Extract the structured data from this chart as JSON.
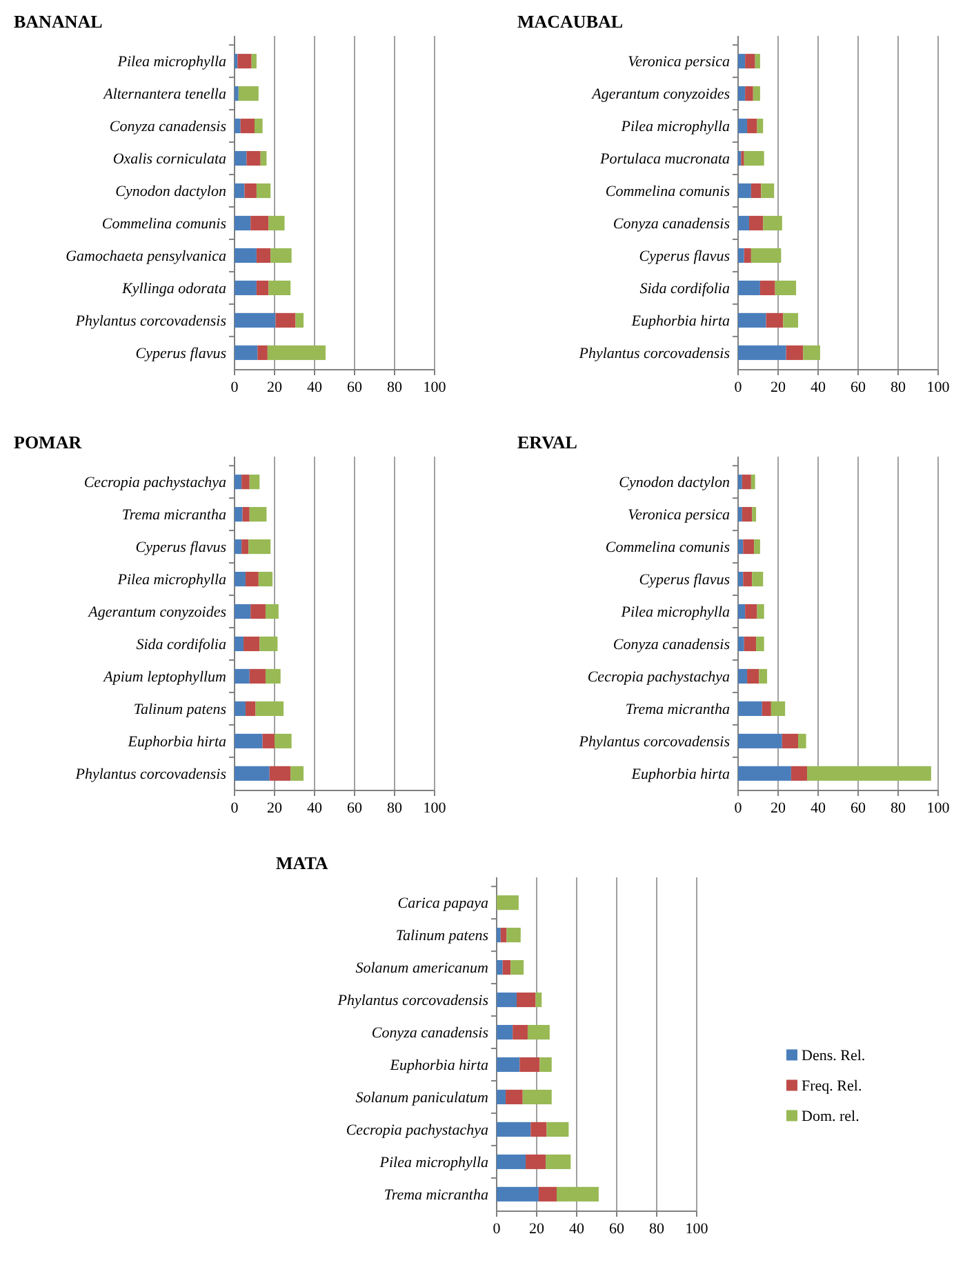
{
  "chart_data": [
    {
      "type": "bar",
      "orientation": "horizontal",
      "stacked": true,
      "title": "BANANAL",
      "categories": [
        "Pilea microphylla",
        "Alternantera tenella",
        "Conyza canadensis",
        "Oxalis corniculata",
        "Cynodon dactylon",
        "Commelina comunis",
        "Gamochaeta pensylvanica",
        "Kyllinga odorata",
        "Phylantus corcovadensis",
        "Cyperus flavus"
      ],
      "series": [
        {
          "color": "#4a7ebb",
          "values": [
            1.5,
            2,
            3,
            6,
            5,
            8,
            11,
            11,
            20.5,
            11.5
          ]
        },
        {
          "color": "#be4b48",
          "values": [
            7,
            0,
            7,
            7,
            6,
            9,
            7,
            6,
            10,
            5
          ]
        },
        {
          "color": "#98b954",
          "values": [
            2.5,
            10,
            4,
            3,
            7,
            8,
            10.5,
            11,
            4,
            29
          ]
        }
      ],
      "xlim": [
        0,
        100
      ],
      "xticks": [
        0,
        20,
        40,
        60,
        80,
        100
      ],
      "grid": "x",
      "legend": false
    },
    {
      "type": "bar",
      "orientation": "horizontal",
      "stacked": true,
      "title": "MACAUBAL",
      "categories": [
        "Veronica persica",
        "Agerantum conyzoides",
        "Pilea microphylla",
        "Portulaca mucronata",
        "Commelina comunis",
        "Conyza canadensis",
        "Cyperus flavus",
        "Sida cordifolia",
        "Euphorbia hirta",
        "Phylantus corcovadensis"
      ],
      "series": [
        {
          "color": "#4a7ebb",
          "values": [
            3.5,
            3.5,
            4.5,
            1.5,
            6.5,
            5.5,
            3,
            11,
            14,
            24
          ]
        },
        {
          "color": "#be4b48",
          "values": [
            5,
            4,
            5,
            1.5,
            5,
            7,
            3.5,
            7.5,
            8.5,
            8.5
          ]
        },
        {
          "color": "#98b954",
          "values": [
            2.5,
            3.5,
            3,
            10,
            6.5,
            9.5,
            15,
            10.5,
            7.5,
            8.5
          ]
        }
      ],
      "xlim": [
        0,
        100
      ],
      "xticks": [
        0,
        20,
        40,
        60,
        80,
        100
      ],
      "grid": "x",
      "legend": false
    },
    {
      "type": "bar",
      "orientation": "horizontal",
      "stacked": true,
      "title": "POMAR",
      "categories": [
        "Cecropia pachystachya",
        "Trema micrantha",
        "Cyperus flavus",
        "Pilea microphylla",
        "Agerantum conyzoides",
        "Sida cordifolia",
        "Apium leptophyllum",
        "Talinum patens",
        "Euphorbia hirta",
        "Phylantus corcovadensis"
      ],
      "series": [
        {
          "color": "#4a7ebb",
          "values": [
            3.5,
            4,
            3.5,
            5.5,
            8,
            4.5,
            7.5,
            5.5,
            14,
            17.5
          ]
        },
        {
          "color": "#be4b48",
          "values": [
            4,
            3.5,
            3.5,
            6.5,
            7.5,
            8,
            8,
            5,
            6,
            10.5
          ]
        },
        {
          "color": "#98b954",
          "values": [
            5,
            8.5,
            11,
            7,
            6.5,
            9,
            7.5,
            14,
            8.5,
            6.5
          ]
        }
      ],
      "xlim": [
        0,
        100
      ],
      "xticks": [
        0,
        20,
        40,
        60,
        80,
        100
      ],
      "grid": "x",
      "legend": false
    },
    {
      "type": "bar",
      "orientation": "horizontal",
      "stacked": true,
      "title": "ERVAL",
      "categories": [
        "Cynodon dactylon",
        "Veronica persica",
        "Commelina comunis",
        "Cyperus flavus",
        "Pilea microphylla",
        "Conyza canadensis",
        "Cecropia pachystachya",
        "Trema micrantha",
        "Phylantus corcovadensis",
        "Euphorbia hirta"
      ],
      "series": [
        {
          "color": "#4a7ebb",
          "values": [
            2,
            2,
            2.5,
            2.5,
            3.5,
            3,
            4.5,
            12,
            22,
            26.5
          ]
        },
        {
          "color": "#be4b48",
          "values": [
            4.5,
            5,
            5.5,
            4.5,
            6,
            6,
            6,
            4.5,
            8,
            8
          ]
        },
        {
          "color": "#98b954",
          "values": [
            2,
            2,
            3,
            5.5,
            3.5,
            4,
            4,
            7,
            4,
            62
          ]
        }
      ],
      "xlim": [
        0,
        100
      ],
      "xticks": [
        0,
        20,
        40,
        60,
        80,
        100
      ],
      "grid": "x",
      "legend": false
    },
    {
      "type": "bar",
      "orientation": "horizontal",
      "stacked": true,
      "title": "MATA",
      "categories": [
        "Carica papaya",
        "Talinum patens",
        "Solanum americanum",
        "Phylantus corcovadensis",
        "Conyza canadensis",
        "Euphorbia hirta",
        "Solanum paniculatum",
        "Cecropia pachystachya",
        "Pilea microphylla",
        "Trema micrantha"
      ],
      "series": [
        {
          "name": "Dens. Rel.",
          "color": "#4a7ebb",
          "values": [
            0,
            2,
            3,
            10,
            8,
            11.5,
            4.5,
            17,
            14.5,
            21
          ]
        },
        {
          "name": "Freq. Rel.",
          "color": "#be4b48",
          "values": [
            0,
            3,
            4,
            9.5,
            7.5,
            10,
            8.5,
            8,
            10,
            9
          ]
        },
        {
          "name": "Dom. rel.",
          "color": "#98b954",
          "values": [
            11,
            7,
            6.5,
            3,
            11,
            6,
            14.5,
            11,
            12.5,
            21
          ]
        }
      ],
      "xlim": [
        0,
        100
      ],
      "xticks": [
        0,
        20,
        40,
        60,
        80,
        100
      ],
      "grid": "x",
      "legend": "right"
    }
  ]
}
